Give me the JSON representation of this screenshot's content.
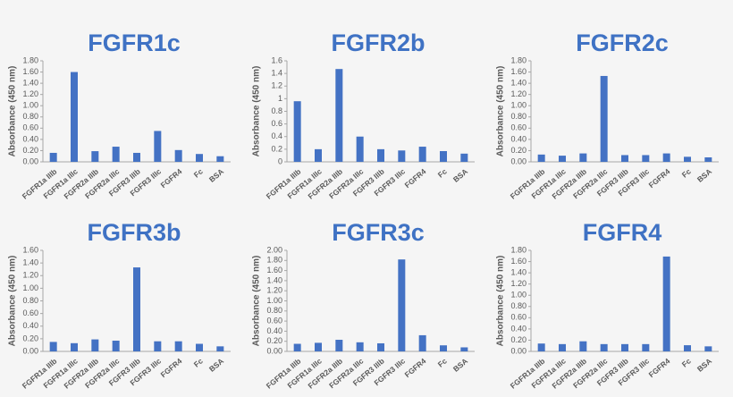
{
  "chart_data": [
    {
      "type": "bar",
      "title": "FGFR1c",
      "y_label": "Absorbance (450 nm)",
      "color": "#4472c4",
      "categories": [
        "FGFR1a IIIb",
        "FGFR1a IIIc",
        "FGFR2a IIIb",
        "FGFR2a IIIc",
        "FGFR3 IIIb",
        "FGFR3 IIIc",
        "FGFR4",
        "Fc",
        "BSA"
      ],
      "values": [
        0.16,
        1.6,
        0.19,
        0.27,
        0.16,
        0.55,
        0.21,
        0.14,
        0.1
      ],
      "ylim": [
        0,
        1.8
      ],
      "yticks": [
        {
          "value": 0,
          "label": "0.00"
        },
        {
          "value": 0.2,
          "label": "0.20"
        },
        {
          "value": 0.4,
          "label": "0.40"
        },
        {
          "value": 0.6,
          "label": "0.60"
        },
        {
          "value": 0.8,
          "label": "0.80"
        },
        {
          "value": 1,
          "label": "1.00"
        },
        {
          "value": 1.2,
          "label": "1.20"
        },
        {
          "value": 1.4,
          "label": "1.40"
        },
        {
          "value": 1.6,
          "label": "1.60"
        },
        {
          "value": 1.8,
          "label": "1.80"
        }
      ]
    },
    {
      "type": "bar",
      "title": "FGFR2b",
      "y_label": "Absorbance (450 nm)",
      "color": "#4472c4",
      "categories": [
        "FGFR1a IIIb",
        "FGFR1a IIIc",
        "FGFR2a IIIb",
        "FGFR2a IIIc",
        "FGFR3 IIIb",
        "FGFR3 IIIc",
        "FGFR4",
        "Fc",
        "BSA"
      ],
      "values": [
        0.96,
        0.2,
        1.47,
        0.4,
        0.2,
        0.18,
        0.24,
        0.17,
        0.13
      ],
      "ylim": [
        0,
        1.6
      ],
      "yticks": [
        0,
        0.2,
        0.4,
        0.6,
        0.8,
        1,
        1.2,
        1.4,
        1.6
      ]
    },
    {
      "type": "bar",
      "title": "FGFR2c",
      "y_label": "Absorbance (450 nm)",
      "color": "#4472c4",
      "categories": [
        "FGFR1a IIIb",
        "FGFR1a IIIc",
        "FGFR2a IIIb",
        "FGFR2a IIIc",
        "FGFR3 IIIb",
        "FGFR3 IIIc",
        "FGFR4",
        "Fc",
        "BSA"
      ],
      "values": [
        0.13,
        0.11,
        0.15,
        1.53,
        0.12,
        0.12,
        0.15,
        0.09,
        0.08
      ],
      "ylim": [
        0,
        1.8
      ],
      "yticks": [
        {
          "value": 0,
          "label": "0.00"
        },
        {
          "value": 0.2,
          "label": "0.20"
        },
        {
          "value": 0.4,
          "label": "0.40"
        },
        {
          "value": 0.6,
          "label": "0.60"
        },
        {
          "value": 0.8,
          "label": "0.80"
        },
        {
          "value": 1,
          "label": "1.00"
        },
        {
          "value": 1.2,
          "label": "1.20"
        },
        {
          "value": 1.4,
          "label": "1.40"
        },
        {
          "value": 1.6,
          "label": "1.60"
        },
        {
          "value": 1.8,
          "label": "1.80"
        }
      ]
    },
    {
      "type": "bar",
      "title": "FGFR3b",
      "y_label": "Absorbance (450 nm)",
      "color": "#4472c4",
      "categories": [
        "FGFR1a IIIb",
        "FGFR1a IIIc",
        "FGFR2a IIIb",
        "FGFR2a IIIc",
        "FGFR3 IIIb",
        "FGFR3 IIIc",
        "FGFR4",
        "Fc",
        "BSA"
      ],
      "values": [
        0.15,
        0.13,
        0.19,
        0.17,
        1.33,
        0.16,
        0.16,
        0.12,
        0.08
      ],
      "ylim": [
        0,
        1.6
      ],
      "yticks": [
        {
          "value": 0,
          "label": "0.00"
        },
        {
          "value": 0.2,
          "label": "0.20"
        },
        {
          "value": 0.4,
          "label": "0.40"
        },
        {
          "value": 0.6,
          "label": "0.60"
        },
        {
          "value": 0.8,
          "label": "0.80"
        },
        {
          "value": 1,
          "label": "1.00"
        },
        {
          "value": 1.2,
          "label": "1.20"
        },
        {
          "value": 1.4,
          "label": "1.40"
        },
        {
          "value": 1.6,
          "label": "1.60"
        }
      ]
    },
    {
      "type": "bar",
      "title": "FGFR3c",
      "y_label": "Absorbance (450 nm)",
      "color": "#4472c4",
      "categories": [
        "FGFR1a IIIb",
        "FGFR1a IIIc",
        "FGFR2a IIIb",
        "FGFR2a IIIc",
        "FGFR3 IIIb",
        "FGFR3 IIIc",
        "FGFR4",
        "Fc",
        "BSA"
      ],
      "values": [
        0.15,
        0.17,
        0.23,
        0.18,
        0.16,
        1.82,
        0.32,
        0.12,
        0.08
      ],
      "ylim": [
        0,
        2
      ],
      "yticks": [
        {
          "value": 0,
          "label": "0.00"
        },
        {
          "value": 0.2,
          "label": "0.20"
        },
        {
          "value": 0.4,
          "label": "0.40"
        },
        {
          "value": 0.6,
          "label": "0.60"
        },
        {
          "value": 0.8,
          "label": "0.80"
        },
        {
          "value": 1,
          "label": "1.00"
        },
        {
          "value": 1.2,
          "label": "1.20"
        },
        {
          "value": 1.4,
          "label": "1.40"
        },
        {
          "value": 1.6,
          "label": "1.60"
        },
        {
          "value": 1.8,
          "label": "1.80"
        },
        {
          "value": 2,
          "label": "2.00"
        }
      ]
    },
    {
      "type": "bar",
      "title": "FGFR4",
      "y_label": "Absorbance (450 nm)",
      "color": "#4472c4",
      "categories": [
        "FGFR1a IIIb",
        "FGFR1a IIIc",
        "FGFR2a IIIb",
        "FGFR2a IIIc",
        "FGFR3 IIIb",
        "FGFR3 IIIc",
        "FGFR4",
        "Fc",
        "BSA"
      ],
      "values": [
        0.14,
        0.13,
        0.18,
        0.13,
        0.13,
        0.13,
        1.69,
        0.11,
        0.09
      ],
      "ylim": [
        0,
        1.8
      ],
      "yticks": [
        {
          "value": 0,
          "label": "0.00"
        },
        {
          "value": 0.2,
          "label": "0.20"
        },
        {
          "value": 0.4,
          "label": "0.40"
        },
        {
          "value": 0.6,
          "label": "0.60"
        },
        {
          "value": 0.8,
          "label": "0.80"
        },
        {
          "value": 1,
          "label": "1.00"
        },
        {
          "value": 1.2,
          "label": "1.20"
        },
        {
          "value": 1.4,
          "label": "1.40"
        },
        {
          "value": 1.6,
          "label": "1.60"
        },
        {
          "value": 1.8,
          "label": "1.80"
        }
      ]
    }
  ]
}
